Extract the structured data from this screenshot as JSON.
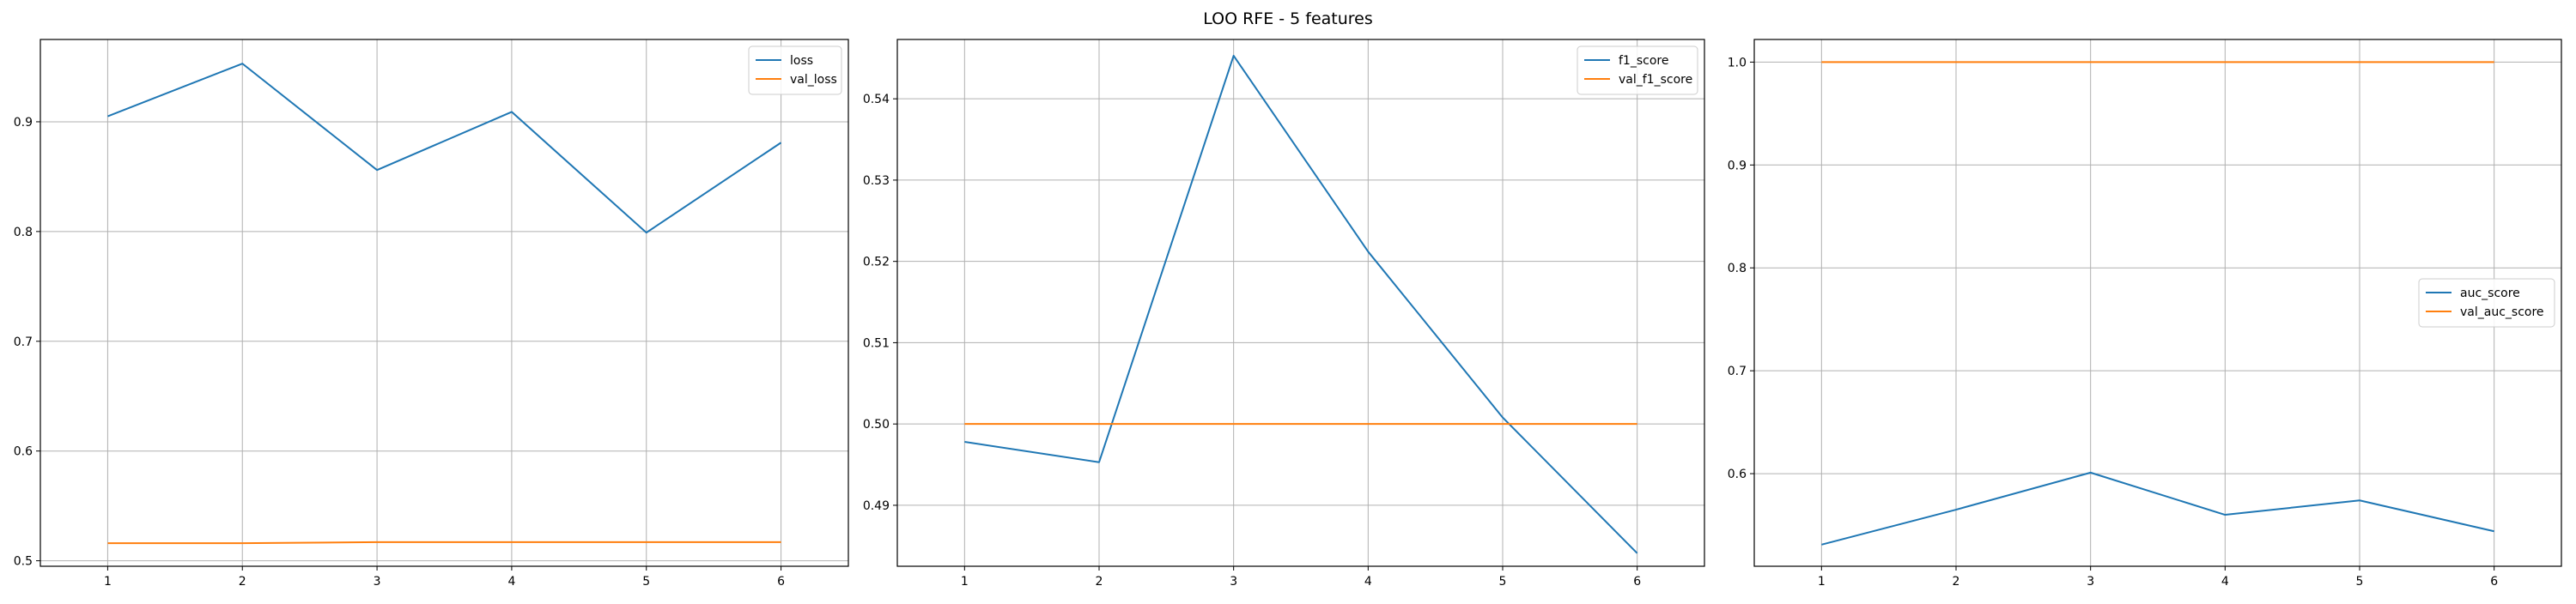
{
  "figure": {
    "title": "LOO RFE - 5 features"
  },
  "colors": {
    "series_1": "#1f77b4",
    "series_2": "#ff7f0e",
    "grid": "#b0b0b0",
    "axes": "#000000",
    "legend_border": "#cccccc"
  },
  "chart_data": [
    {
      "type": "line",
      "title": "",
      "xlabel": "",
      "ylabel": "",
      "x": [
        1,
        2,
        3,
        4,
        5,
        6
      ],
      "xlim": [
        0.5,
        6.5
      ],
      "ylim": [
        0.495,
        0.975
      ],
      "xticks": [
        1,
        2,
        3,
        4,
        5,
        6
      ],
      "yticks": [
        0.5,
        0.6,
        0.7,
        0.8,
        0.9
      ],
      "ytick_labels": [
        "0.5",
        "0.6",
        "0.7",
        "0.8",
        "0.9"
      ],
      "grid": true,
      "legend_position": "upper-right",
      "series": [
        {
          "name": "loss",
          "color": "#1f77b4",
          "values": [
            0.905,
            0.953,
            0.856,
            0.909,
            0.799,
            0.881
          ]
        },
        {
          "name": "val_loss",
          "color": "#ff7f0e",
          "values": [
            0.516,
            0.516,
            0.517,
            0.517,
            0.517,
            0.517
          ]
        }
      ]
    },
    {
      "type": "line",
      "title": "",
      "xlabel": "",
      "ylabel": "",
      "x": [
        1,
        2,
        3,
        4,
        5,
        6
      ],
      "xlim": [
        0.5,
        6.5
      ],
      "ylim": [
        0.4825,
        0.5473
      ],
      "xticks": [
        1,
        2,
        3,
        4,
        5,
        6
      ],
      "yticks": [
        0.49,
        0.5,
        0.51,
        0.52,
        0.53,
        0.54
      ],
      "ytick_labels": [
        "0.49",
        "0.50",
        "0.51",
        "0.52",
        "0.53",
        "0.54"
      ],
      "grid": true,
      "legend_position": "upper-right",
      "series": [
        {
          "name": "f1_score",
          "color": "#1f77b4",
          "values": [
            0.4978,
            0.4953,
            0.5453,
            0.5212,
            0.5008,
            0.4841
          ]
        },
        {
          "name": "val_f1_score",
          "color": "#ff7f0e",
          "values": [
            0.5,
            0.5,
            0.5,
            0.5,
            0.5,
            0.5
          ]
        }
      ]
    },
    {
      "type": "line",
      "title": "",
      "xlabel": "",
      "ylabel": "",
      "x": [
        1,
        2,
        3,
        4,
        5,
        6
      ],
      "xlim": [
        0.5,
        6.5
      ],
      "ylim": [
        0.51,
        1.022
      ],
      "xticks": [
        1,
        2,
        3,
        4,
        5,
        6
      ],
      "yticks": [
        0.6,
        0.7,
        0.8,
        0.9,
        1.0
      ],
      "ytick_labels": [
        "0.6",
        "0.7",
        "0.8",
        "0.9",
        "1.0"
      ],
      "grid": true,
      "legend_position": "center-right",
      "series": [
        {
          "name": "auc_score",
          "color": "#1f77b4",
          "values": [
            0.531,
            0.565,
            0.601,
            0.56,
            0.574,
            0.544
          ]
        },
        {
          "name": "val_auc_score",
          "color": "#ff7f0e",
          "values": [
            1.0,
            1.0,
            1.0,
            1.0,
            1.0,
            1.0
          ]
        }
      ]
    }
  ]
}
